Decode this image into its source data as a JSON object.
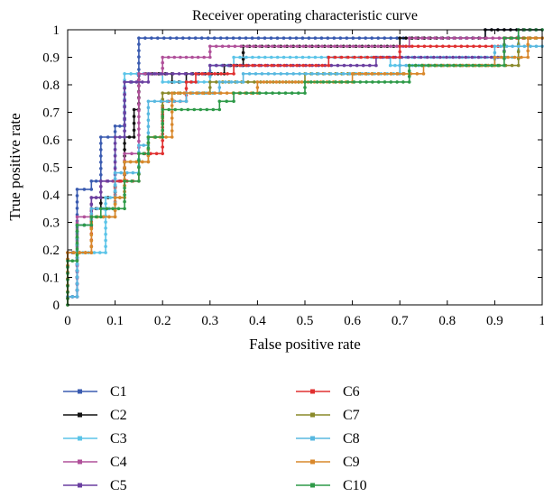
{
  "chart_data": {
    "type": "line",
    "title": "Receiver operating characteristic curve",
    "xlabel": "False positive rate",
    "ylabel": "True positive rate",
    "xlim": [
      0,
      1
    ],
    "ylim": [
      0,
      1
    ],
    "xticks": [
      "0",
      "0.1",
      "0.2",
      "0.3",
      "0.4",
      "0.5",
      "0.6",
      "0.7",
      "0.8",
      "0.9",
      "1"
    ],
    "yticks": [
      "0",
      "0.1",
      "0.2",
      "0.3",
      "0.4",
      "0.5",
      "0.6",
      "0.7",
      "0.8",
      "0.9",
      "1"
    ],
    "grid": false,
    "legend_position": "below",
    "series": [
      {
        "name": "C1",
        "color": "#3a5bb0",
        "points": [
          [
            0,
            0
          ],
          [
            0,
            0.19
          ],
          [
            0.02,
            0.19
          ],
          [
            0.02,
            0.42
          ],
          [
            0.05,
            0.42
          ],
          [
            0.05,
            0.45
          ],
          [
            0.07,
            0.45
          ],
          [
            0.07,
            0.61
          ],
          [
            0.1,
            0.61
          ],
          [
            0.1,
            0.65
          ],
          [
            0.12,
            0.65
          ],
          [
            0.12,
            0.81
          ],
          [
            0.15,
            0.81
          ],
          [
            0.15,
            0.97
          ],
          [
            0.88,
            0.97
          ],
          [
            0.88,
            1
          ],
          [
            1,
            1
          ]
        ]
      },
      {
        "name": "C2",
        "color": "#111111",
        "points": [
          [
            0,
            0
          ],
          [
            0,
            0.03
          ],
          [
            0.02,
            0.03
          ],
          [
            0.02,
            0.29
          ],
          [
            0.05,
            0.29
          ],
          [
            0.05,
            0.35
          ],
          [
            0.07,
            0.35
          ],
          [
            0.07,
            0.39
          ],
          [
            0.1,
            0.39
          ],
          [
            0.1,
            0.45
          ],
          [
            0.12,
            0.45
          ],
          [
            0.12,
            0.61
          ],
          [
            0.14,
            0.61
          ],
          [
            0.14,
            0.71
          ],
          [
            0.15,
            0.71
          ],
          [
            0.15,
            0.84
          ],
          [
            0.22,
            0.84
          ],
          [
            0.22,
            0.81
          ],
          [
            0.25,
            0.81
          ],
          [
            0.25,
            0.84
          ],
          [
            0.33,
            0.84
          ],
          [
            0.33,
            0.87
          ],
          [
            0.37,
            0.87
          ],
          [
            0.37,
            0.94
          ],
          [
            0.7,
            0.94
          ],
          [
            0.7,
            0.97
          ],
          [
            0.88,
            0.97
          ],
          [
            0.88,
            1
          ],
          [
            1,
            1
          ]
        ]
      },
      {
        "name": "C3",
        "color": "#5bc4e8",
        "points": [
          [
            0,
            0
          ],
          [
            0,
            0.03
          ],
          [
            0.02,
            0.03
          ],
          [
            0.02,
            0.19
          ],
          [
            0.08,
            0.19
          ],
          [
            0.08,
            0.39
          ],
          [
            0.1,
            0.39
          ],
          [
            0.1,
            0.61
          ],
          [
            0.12,
            0.61
          ],
          [
            0.12,
            0.84
          ],
          [
            0.2,
            0.84
          ],
          [
            0.2,
            0.81
          ],
          [
            0.3,
            0.81
          ],
          [
            0.3,
            0.87
          ],
          [
            0.35,
            0.87
          ],
          [
            0.35,
            0.9
          ],
          [
            0.68,
            0.9
          ],
          [
            0.68,
            0.87
          ],
          [
            0.7,
            0.87
          ],
          [
            0.7,
            0.9
          ],
          [
            0.95,
            0.9
          ],
          [
            0.95,
            1
          ],
          [
            1,
            1
          ]
        ]
      },
      {
        "name": "C4",
        "color": "#b0509a",
        "points": [
          [
            0,
            0
          ],
          [
            0,
            0.03
          ],
          [
            0.02,
            0.03
          ],
          [
            0.02,
            0.32
          ],
          [
            0.05,
            0.32
          ],
          [
            0.05,
            0.39
          ],
          [
            0.07,
            0.39
          ],
          [
            0.07,
            0.45
          ],
          [
            0.12,
            0.45
          ],
          [
            0.12,
            0.55
          ],
          [
            0.15,
            0.55
          ],
          [
            0.15,
            0.84
          ],
          [
            0.2,
            0.84
          ],
          [
            0.2,
            0.9
          ],
          [
            0.3,
            0.9
          ],
          [
            0.3,
            0.94
          ],
          [
            0.72,
            0.94
          ],
          [
            0.72,
            0.97
          ],
          [
            0.95,
            0.97
          ],
          [
            0.95,
            1
          ],
          [
            1,
            1
          ]
        ]
      },
      {
        "name": "C5",
        "color": "#6a3fa0",
        "points": [
          [
            0,
            0
          ],
          [
            0,
            0.03
          ],
          [
            0.02,
            0.03
          ],
          [
            0.02,
            0.29
          ],
          [
            0.05,
            0.29
          ],
          [
            0.05,
            0.39
          ],
          [
            0.07,
            0.39
          ],
          [
            0.07,
            0.45
          ],
          [
            0.1,
            0.45
          ],
          [
            0.1,
            0.61
          ],
          [
            0.12,
            0.61
          ],
          [
            0.12,
            0.81
          ],
          [
            0.17,
            0.81
          ],
          [
            0.17,
            0.84
          ],
          [
            0.3,
            0.84
          ],
          [
            0.3,
            0.87
          ],
          [
            0.65,
            0.87
          ],
          [
            0.65,
            0.9
          ],
          [
            0.92,
            0.9
          ],
          [
            0.92,
            0.97
          ],
          [
            1,
            0.97
          ]
        ]
      },
      {
        "name": "C6",
        "color": "#e03030",
        "points": [
          [
            0,
            0
          ],
          [
            0,
            0.19
          ],
          [
            0.05,
            0.19
          ],
          [
            0.05,
            0.35
          ],
          [
            0.1,
            0.35
          ],
          [
            0.1,
            0.45
          ],
          [
            0.15,
            0.45
          ],
          [
            0.15,
            0.55
          ],
          [
            0.2,
            0.55
          ],
          [
            0.2,
            0.74
          ],
          [
            0.25,
            0.74
          ],
          [
            0.25,
            0.81
          ],
          [
            0.27,
            0.81
          ],
          [
            0.27,
            0.84
          ],
          [
            0.35,
            0.84
          ],
          [
            0.35,
            0.87
          ],
          [
            0.55,
            0.87
          ],
          [
            0.55,
            0.9
          ],
          [
            0.7,
            0.9
          ],
          [
            0.7,
            0.94
          ],
          [
            0.92,
            0.94
          ],
          [
            0.92,
            0.97
          ],
          [
            1,
            0.97
          ]
        ]
      },
      {
        "name": "C7",
        "color": "#8a8a2a",
        "points": [
          [
            0,
            0
          ],
          [
            0,
            0.19
          ],
          [
            0.05,
            0.19
          ],
          [
            0.05,
            0.32
          ],
          [
            0.1,
            0.32
          ],
          [
            0.1,
            0.39
          ],
          [
            0.12,
            0.39
          ],
          [
            0.12,
            0.52
          ],
          [
            0.17,
            0.52
          ],
          [
            0.17,
            0.61
          ],
          [
            0.2,
            0.61
          ],
          [
            0.2,
            0.77
          ],
          [
            0.3,
            0.77
          ],
          [
            0.3,
            0.81
          ],
          [
            0.5,
            0.81
          ],
          [
            0.5,
            0.84
          ],
          [
            0.72,
            0.84
          ],
          [
            0.72,
            0.87
          ],
          [
            0.95,
            0.87
          ],
          [
            0.95,
            0.97
          ],
          [
            1,
            0.97
          ]
        ]
      },
      {
        "name": "C8",
        "color": "#58b8e0",
        "points": [
          [
            0,
            0
          ],
          [
            0,
            0.03
          ],
          [
            0.02,
            0.03
          ],
          [
            0.02,
            0.29
          ],
          [
            0.05,
            0.29
          ],
          [
            0.05,
            0.35
          ],
          [
            0.1,
            0.35
          ],
          [
            0.1,
            0.48
          ],
          [
            0.15,
            0.48
          ],
          [
            0.15,
            0.58
          ],
          [
            0.17,
            0.58
          ],
          [
            0.17,
            0.74
          ],
          [
            0.25,
            0.74
          ],
          [
            0.25,
            0.77
          ],
          [
            0.32,
            0.77
          ],
          [
            0.32,
            0.81
          ],
          [
            0.37,
            0.81
          ],
          [
            0.37,
            0.84
          ],
          [
            0.7,
            0.84
          ],
          [
            0.7,
            0.87
          ],
          [
            0.9,
            0.87
          ],
          [
            0.9,
            0.94
          ],
          [
            1,
            0.94
          ]
        ]
      },
      {
        "name": "C9",
        "color": "#d9882c",
        "points": [
          [
            0,
            0
          ],
          [
            0,
            0.19
          ],
          [
            0.05,
            0.19
          ],
          [
            0.05,
            0.32
          ],
          [
            0.1,
            0.32
          ],
          [
            0.1,
            0.39
          ],
          [
            0.12,
            0.39
          ],
          [
            0.12,
            0.52
          ],
          [
            0.17,
            0.52
          ],
          [
            0.17,
            0.61
          ],
          [
            0.22,
            0.61
          ],
          [
            0.22,
            0.77
          ],
          [
            0.4,
            0.77
          ],
          [
            0.4,
            0.81
          ],
          [
            0.6,
            0.81
          ],
          [
            0.6,
            0.84
          ],
          [
            0.75,
            0.84
          ],
          [
            0.75,
            0.87
          ],
          [
            0.9,
            0.87
          ],
          [
            0.9,
            0.9
          ],
          [
            0.97,
            0.9
          ],
          [
            0.97,
            0.97
          ],
          [
            1,
            0.97
          ]
        ]
      },
      {
        "name": "C10",
        "color": "#2e9a48",
        "points": [
          [
            0,
            0
          ],
          [
            0,
            0.16
          ],
          [
            0.02,
            0.16
          ],
          [
            0.02,
            0.29
          ],
          [
            0.05,
            0.29
          ],
          [
            0.05,
            0.32
          ],
          [
            0.07,
            0.32
          ],
          [
            0.07,
            0.35
          ],
          [
            0.12,
            0.35
          ],
          [
            0.12,
            0.45
          ],
          [
            0.15,
            0.45
          ],
          [
            0.15,
            0.55
          ],
          [
            0.17,
            0.55
          ],
          [
            0.17,
            0.61
          ],
          [
            0.2,
            0.61
          ],
          [
            0.2,
            0.71
          ],
          [
            0.32,
            0.71
          ],
          [
            0.32,
            0.74
          ],
          [
            0.35,
            0.74
          ],
          [
            0.35,
            0.77
          ],
          [
            0.5,
            0.77
          ],
          [
            0.5,
            0.81
          ],
          [
            0.72,
            0.81
          ],
          [
            0.72,
            0.87
          ],
          [
            0.92,
            0.87
          ],
          [
            0.92,
            0.97
          ],
          [
            0.95,
            0.97
          ],
          [
            0.95,
            1
          ],
          [
            1,
            1
          ]
        ]
      }
    ]
  }
}
